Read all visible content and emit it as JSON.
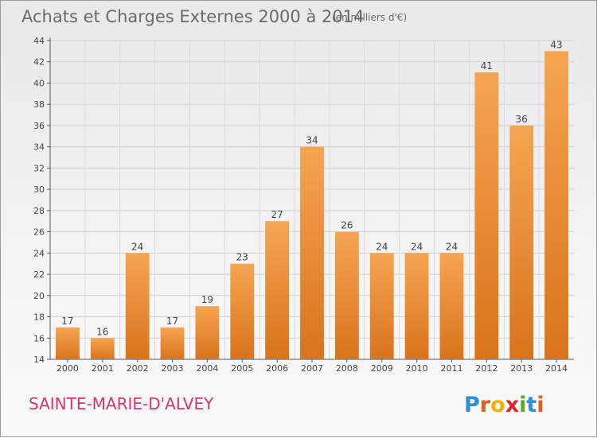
{
  "chart_data": {
    "type": "bar",
    "title": "Achats et Charges Externes 2000 à 2014",
    "subtitle": "(en milliers d'€)",
    "categories": [
      "2000",
      "2001",
      "2002",
      "2003",
      "2004",
      "2005",
      "2006",
      "2007",
      "2008",
      "2009",
      "2010",
      "2011",
      "2012",
      "2013",
      "2014"
    ],
    "values": [
      17,
      16,
      24,
      17,
      19,
      23,
      27,
      34,
      26,
      24,
      24,
      24,
      41,
      36,
      43
    ],
    "ylim": [
      14,
      44
    ],
    "yticks": [
      14,
      16,
      18,
      20,
      22,
      24,
      26,
      28,
      30,
      32,
      34,
      36,
      38,
      40,
      42,
      44
    ],
    "grid": true,
    "bar_color": "#f0983f",
    "bar_color_dark": "#d9731c"
  },
  "commune": "SAINTE-MARIE-D'ALVEY",
  "logo": {
    "letters": [
      "P",
      "r",
      "o",
      "x",
      "i",
      "t",
      "i"
    ],
    "colors": [
      "#2f8fd0",
      "#e85c1b",
      "#f4b000",
      "#d8262e",
      "#5aaa2a",
      "#2f8fd0",
      "#e85c1b"
    ]
  }
}
